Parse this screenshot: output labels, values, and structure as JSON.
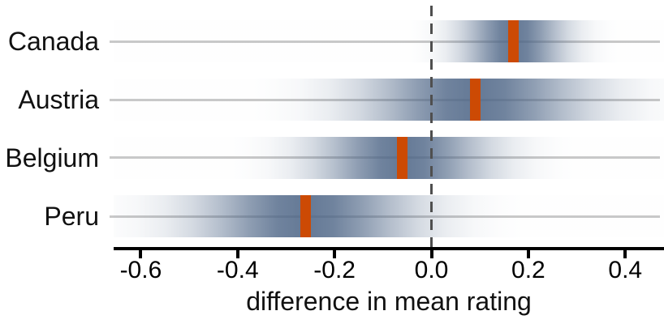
{
  "chart_data": {
    "type": "gradient-interval",
    "title": "",
    "xlabel": "difference in mean rating",
    "categories": [
      "Canada",
      "Austria",
      "Belgium",
      "Peru"
    ],
    "estimates": [
      0.17,
      0.09,
      -0.06,
      -0.26
    ],
    "sd": [
      0.07,
      0.15,
      0.115,
      0.145
    ],
    "visible_band_approx": [
      [
        0.0,
        0.35
      ],
      [
        -0.32,
        0.45
      ],
      [
        -0.37,
        0.25
      ],
      [
        -0.66,
        0.14
      ]
    ],
    "x_ticks": [
      -0.6,
      -0.4,
      -0.2,
      0,
      0.2,
      0.4
    ],
    "x_tick_labels": [
      "-0.6",
      "-0.4",
      "-0.2",
      "0.0",
      "0.2",
      "0.4"
    ],
    "xlim": [
      -0.656,
      0.48
    ],
    "reference_line_x": 0,
    "legend_position": "none",
    "grid": "light horizontal row lines",
    "colors": {
      "band": "#4D6586",
      "band_max_alpha": 0.87,
      "marker": "#CC4A04",
      "reference_line": "#4F4F4F",
      "row_line": "#C9C9C9",
      "axis": "#000000",
      "text": "#111111"
    }
  }
}
